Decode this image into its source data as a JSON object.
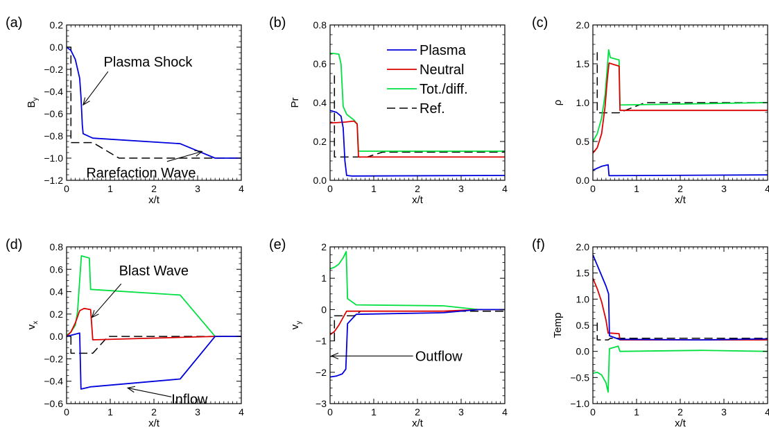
{
  "chart_data": {
    "type": "line",
    "x_axis_label": "x/t",
    "xlim": [
      0,
      4
    ],
    "x_ticks": [
      0,
      1,
      2,
      3,
      4
    ],
    "colors": {
      "plasma": "#0000dd",
      "neutral": "#dd0000",
      "total": "#00e040",
      "ref": "#000000"
    },
    "legend": {
      "placement": "inside panel (b), upper right",
      "entries": [
        {
          "key": "plasma",
          "label": "Plasma",
          "dashed": false
        },
        {
          "key": "neutral",
          "label": "Neutral",
          "dashed": false
        },
        {
          "key": "total",
          "label": "Tot./diff.",
          "dashed": false
        },
        {
          "key": "ref",
          "label": "Ref.",
          "dashed": true
        }
      ]
    },
    "panels": [
      {
        "id": "a",
        "letter": "(a)",
        "ylabel_main": "B",
        "ylabel_sub": "y",
        "ylim": [
          -1.2,
          0.2
        ],
        "y_ticks": [
          -1.2,
          -1.0,
          -0.8,
          -0.6,
          -0.4,
          -0.2,
          0.0,
          0.2
        ],
        "y_decimals": 1,
        "series": [
          {
            "key": "ref",
            "dashed": true,
            "points": [
              [
                0,
                0
              ],
              [
                0.1,
                0
              ],
              [
                0.1,
                -0.86
              ],
              [
                0.6,
                -0.86
              ],
              [
                1.2,
                -1.0
              ],
              [
                4,
                -1.0
              ]
            ]
          },
          {
            "key": "plasma",
            "points": [
              [
                0,
                0
              ],
              [
                0.1,
                -0.03
              ],
              [
                0.2,
                -0.11
              ],
              [
                0.3,
                -0.28
              ],
              [
                0.33,
                -0.45
              ],
              [
                0.36,
                -0.7
              ],
              [
                0.38,
                -0.78
              ],
              [
                0.6,
                -0.82
              ],
              [
                2.6,
                -0.87
              ],
              [
                3.4,
                -1.0
              ],
              [
                4,
                -1.0
              ]
            ]
          }
        ],
        "annotations": [
          {
            "text": "Plasma Shock",
            "label_at": [
              0.85,
              -0.13
            ],
            "arrow_from": [
              0.95,
              -0.22
            ],
            "arrow_to": [
              0.38,
              -0.52
            ]
          },
          {
            "text": "Rarefaction Wave",
            "label_at": [
              0.45,
              -1.13
            ],
            "arrow_from": [
              2.3,
              -1.03
            ],
            "arrow_to": [
              3.1,
              -0.94
            ]
          }
        ]
      },
      {
        "id": "b",
        "letter": "(b)",
        "ylabel_main": "Pr",
        "ylabel_sub": "",
        "ylim": [
          0.0,
          0.8
        ],
        "y_ticks": [
          0.0,
          0.2,
          0.4,
          0.6,
          0.8
        ],
        "y_decimals": 1,
        "series": [
          {
            "key": "ref",
            "dashed": true,
            "points": [
              [
                0.1,
                0.54
              ],
              [
                0.1,
                0.12
              ],
              [
                0.85,
                0.12
              ],
              [
                1.2,
                0.145
              ],
              [
                4,
                0.145
              ]
            ]
          },
          {
            "key": "total",
            "points": [
              [
                0,
                0.655
              ],
              [
                0.2,
                0.65
              ],
              [
                0.25,
                0.6
              ],
              [
                0.3,
                0.38
              ],
              [
                0.38,
                0.34
              ],
              [
                0.55,
                0.31
              ],
              [
                0.62,
                0.29
              ],
              [
                0.65,
                0.15
              ],
              [
                4,
                0.15
              ]
            ]
          },
          {
            "key": "neutral",
            "points": [
              [
                0,
                0.295
              ],
              [
                0.35,
                0.3
              ],
              [
                0.55,
                0.305
              ],
              [
                0.62,
                0.29
              ],
              [
                0.65,
                0.12
              ],
              [
                4,
                0.12
              ]
            ]
          },
          {
            "key": "plasma",
            "points": [
              [
                0,
                0.36
              ],
              [
                0.15,
                0.35
              ],
              [
                0.25,
                0.33
              ],
              [
                0.3,
                0.27
              ],
              [
                0.34,
                0.1
              ],
              [
                0.38,
                0.025
              ],
              [
                0.5,
                0.022
              ],
              [
                4,
                0.025
              ]
            ]
          }
        ]
      },
      {
        "id": "c",
        "letter": "(c)",
        "ylabel_main": "ρ",
        "ylabel_sub": "",
        "ylim": [
          0.0,
          2.0
        ],
        "y_ticks": [
          0.0,
          0.5,
          1.0,
          1.5,
          2.0
        ],
        "y_decimals": 1,
        "series": [
          {
            "key": "ref",
            "dashed": true,
            "points": [
              [
                0.1,
                1.65
              ],
              [
                0.1,
                0.87
              ],
              [
                0.6,
                0.87
              ],
              [
                1.2,
                1.0
              ],
              [
                4,
                1.0
              ]
            ]
          },
          {
            "key": "total",
            "points": [
              [
                0,
                0.5
              ],
              [
                0.1,
                0.6
              ],
              [
                0.2,
                0.8
              ],
              [
                0.28,
                1.1
              ],
              [
                0.33,
                1.45
              ],
              [
                0.36,
                1.68
              ],
              [
                0.4,
                1.58
              ],
              [
                0.6,
                1.55
              ],
              [
                0.62,
                0.97
              ],
              [
                4,
                1.0
              ]
            ]
          },
          {
            "key": "neutral",
            "points": [
              [
                0,
                0.35
              ],
              [
                0.1,
                0.42
              ],
              [
                0.2,
                0.6
              ],
              [
                0.28,
                0.95
              ],
              [
                0.33,
                1.3
              ],
              [
                0.37,
                1.51
              ],
              [
                0.6,
                1.47
              ],
              [
                0.62,
                0.9
              ],
              [
                4,
                0.9
              ]
            ]
          },
          {
            "key": "plasma",
            "points": [
              [
                0,
                0.13
              ],
              [
                0.2,
                0.18
              ],
              [
                0.35,
                0.2
              ],
              [
                0.37,
                0.06
              ],
              [
                4,
                0.07
              ]
            ]
          }
        ]
      },
      {
        "id": "d",
        "letter": "(d)",
        "ylabel_main": "v",
        "ylabel_sub": "x",
        "ylim": [
          -0.6,
          0.8
        ],
        "y_ticks": [
          -0.6,
          -0.4,
          -0.2,
          0.0,
          0.2,
          0.4,
          0.6,
          0.8
        ],
        "y_decimals": 1,
        "series": [
          {
            "key": "ref",
            "dashed": true,
            "points": [
              [
                0.1,
                0
              ],
              [
                0.1,
                -0.15
              ],
              [
                0.6,
                -0.15
              ],
              [
                0.95,
                0
              ],
              [
                4,
                0
              ]
            ]
          },
          {
            "key": "total",
            "points": [
              [
                0,
                0.01
              ],
              [
                0.1,
                0.04
              ],
              [
                0.2,
                0.1
              ],
              [
                0.25,
                0.22
              ],
              [
                0.3,
                0.5
              ],
              [
                0.34,
                0.72
              ],
              [
                0.52,
                0.7
              ],
              [
                0.55,
                0.42
              ],
              [
                2.6,
                0.37
              ],
              [
                3.4,
                0
              ],
              [
                4,
                0
              ]
            ]
          },
          {
            "key": "neutral",
            "points": [
              [
                0,
                0
              ],
              [
                0.1,
                0.04
              ],
              [
                0.2,
                0.12
              ],
              [
                0.3,
                0.23
              ],
              [
                0.4,
                0.25
              ],
              [
                0.55,
                0.24
              ],
              [
                0.6,
                -0.03
              ],
              [
                3.4,
                0
              ],
              [
                4,
                0
              ]
            ]
          },
          {
            "key": "plasma",
            "points": [
              [
                0,
                0
              ],
              [
                0.1,
                0.01
              ],
              [
                0.2,
                0.02
              ],
              [
                0.3,
                0.03
              ],
              [
                0.33,
                -0.47
              ],
              [
                0.55,
                -0.45
              ],
              [
                2.6,
                -0.38
              ],
              [
                3.4,
                0
              ],
              [
                4,
                0
              ]
            ]
          }
        ],
        "annotations": [
          {
            "text": "Blast Wave",
            "label_at": [
              1.2,
              0.59
            ],
            "arrow_from": [
              1.25,
              0.47
            ],
            "arrow_to": [
              0.58,
              0.17
            ]
          },
          {
            "text": "Inflow",
            "label_at": [
              2.4,
              -0.56
            ],
            "arrow_from": [
              2.4,
              -0.54
            ],
            "arrow_to": [
              1.4,
              -0.46
            ]
          }
        ]
      },
      {
        "id": "e",
        "letter": "(e)",
        "ylabel_main": "v",
        "ylabel_sub": "y",
        "ylim": [
          -3,
          2
        ],
        "y_ticks": [
          -3,
          -2,
          -1,
          0,
          1,
          2
        ],
        "y_decimals": 0,
        "series": [
          {
            "key": "ref",
            "dashed": true,
            "points": [
              [
                0.1,
                -1.0
              ],
              [
                0.1,
                -0.2
              ],
              [
                0.55,
                -0.2
              ],
              [
                0.7,
                -0.05
              ],
              [
                4,
                -0.05
              ]
            ]
          },
          {
            "key": "total",
            "points": [
              [
                0,
                1.3
              ],
              [
                0.1,
                1.35
              ],
              [
                0.2,
                1.45
              ],
              [
                0.3,
                1.65
              ],
              [
                0.37,
                1.85
              ],
              [
                0.4,
                0.35
              ],
              [
                0.6,
                0.15
              ],
              [
                2.6,
                0.12
              ],
              [
                3.4,
                0
              ],
              [
                4,
                0
              ]
            ]
          },
          {
            "key": "neutral",
            "points": [
              [
                0,
                -0.8
              ],
              [
                0.1,
                -0.7
              ],
              [
                0.2,
                -0.5
              ],
              [
                0.28,
                -0.3
              ],
              [
                0.38,
                -0.05
              ],
              [
                2.6,
                -0.05
              ],
              [
                3.4,
                0
              ],
              [
                4,
                0
              ]
            ]
          },
          {
            "key": "plasma",
            "points": [
              [
                0,
                -2.15
              ],
              [
                0.15,
                -2.12
              ],
              [
                0.28,
                -2.05
              ],
              [
                0.36,
                -1.9
              ],
              [
                0.4,
                -0.45
              ],
              [
                0.6,
                -0.15
              ],
              [
                2.6,
                -0.1
              ],
              [
                3.4,
                0
              ],
              [
                4,
                0
              ]
            ]
          }
        ],
        "annotations": [
          {
            "text": "Outflow",
            "label_at": [
              1.95,
              -1.48
            ],
            "arrow_from": [
              1.9,
              -1.48
            ],
            "arrow_to": [
              0.03,
              -1.48
            ]
          }
        ]
      },
      {
        "id": "f",
        "letter": "(f)",
        "ylabel_main": "Temp",
        "ylabel_sub": "",
        "ylim": [
          -1.0,
          2.0
        ],
        "y_ticks": [
          -1.0,
          -0.5,
          0.0,
          0.5,
          1.0,
          1.5,
          2.0
        ],
        "y_decimals": 1,
        "series": [
          {
            "key": "ref",
            "dashed": true,
            "points": [
              [
                0.1,
                0.55
              ],
              [
                0.1,
                0.22
              ],
              [
                0.35,
                0.22
              ],
              [
                0.4,
                0.25
              ],
              [
                4,
                0.25
              ]
            ]
          },
          {
            "key": "total",
            "points": [
              [
                0,
                -0.42
              ],
              [
                0.1,
                -0.4
              ],
              [
                0.2,
                -0.45
              ],
              [
                0.3,
                -0.6
              ],
              [
                0.35,
                -0.78
              ],
              [
                0.38,
                0.05
              ],
              [
                0.58,
                0.1
              ],
              [
                0.62,
                0.0
              ],
              [
                2.5,
                0.02
              ],
              [
                4,
                0.0
              ]
            ]
          },
          {
            "key": "neutral",
            "points": [
              [
                0,
                1.4
              ],
              [
                0.1,
                1.2
              ],
              [
                0.2,
                0.95
              ],
              [
                0.3,
                0.6
              ],
              [
                0.35,
                0.35
              ],
              [
                0.4,
                0.35
              ],
              [
                0.6,
                0.34
              ],
              [
                0.62,
                0.22
              ],
              [
                4,
                0.22
              ]
            ]
          },
          {
            "key": "plasma",
            "points": [
              [
                0,
                1.85
              ],
              [
                0.1,
                1.65
              ],
              [
                0.2,
                1.45
              ],
              [
                0.3,
                1.25
              ],
              [
                0.36,
                1.1
              ],
              [
                0.38,
                0.3
              ],
              [
                0.6,
                0.23
              ],
              [
                2.5,
                0.22
              ],
              [
                4,
                0.24
              ]
            ]
          }
        ]
      }
    ]
  }
}
